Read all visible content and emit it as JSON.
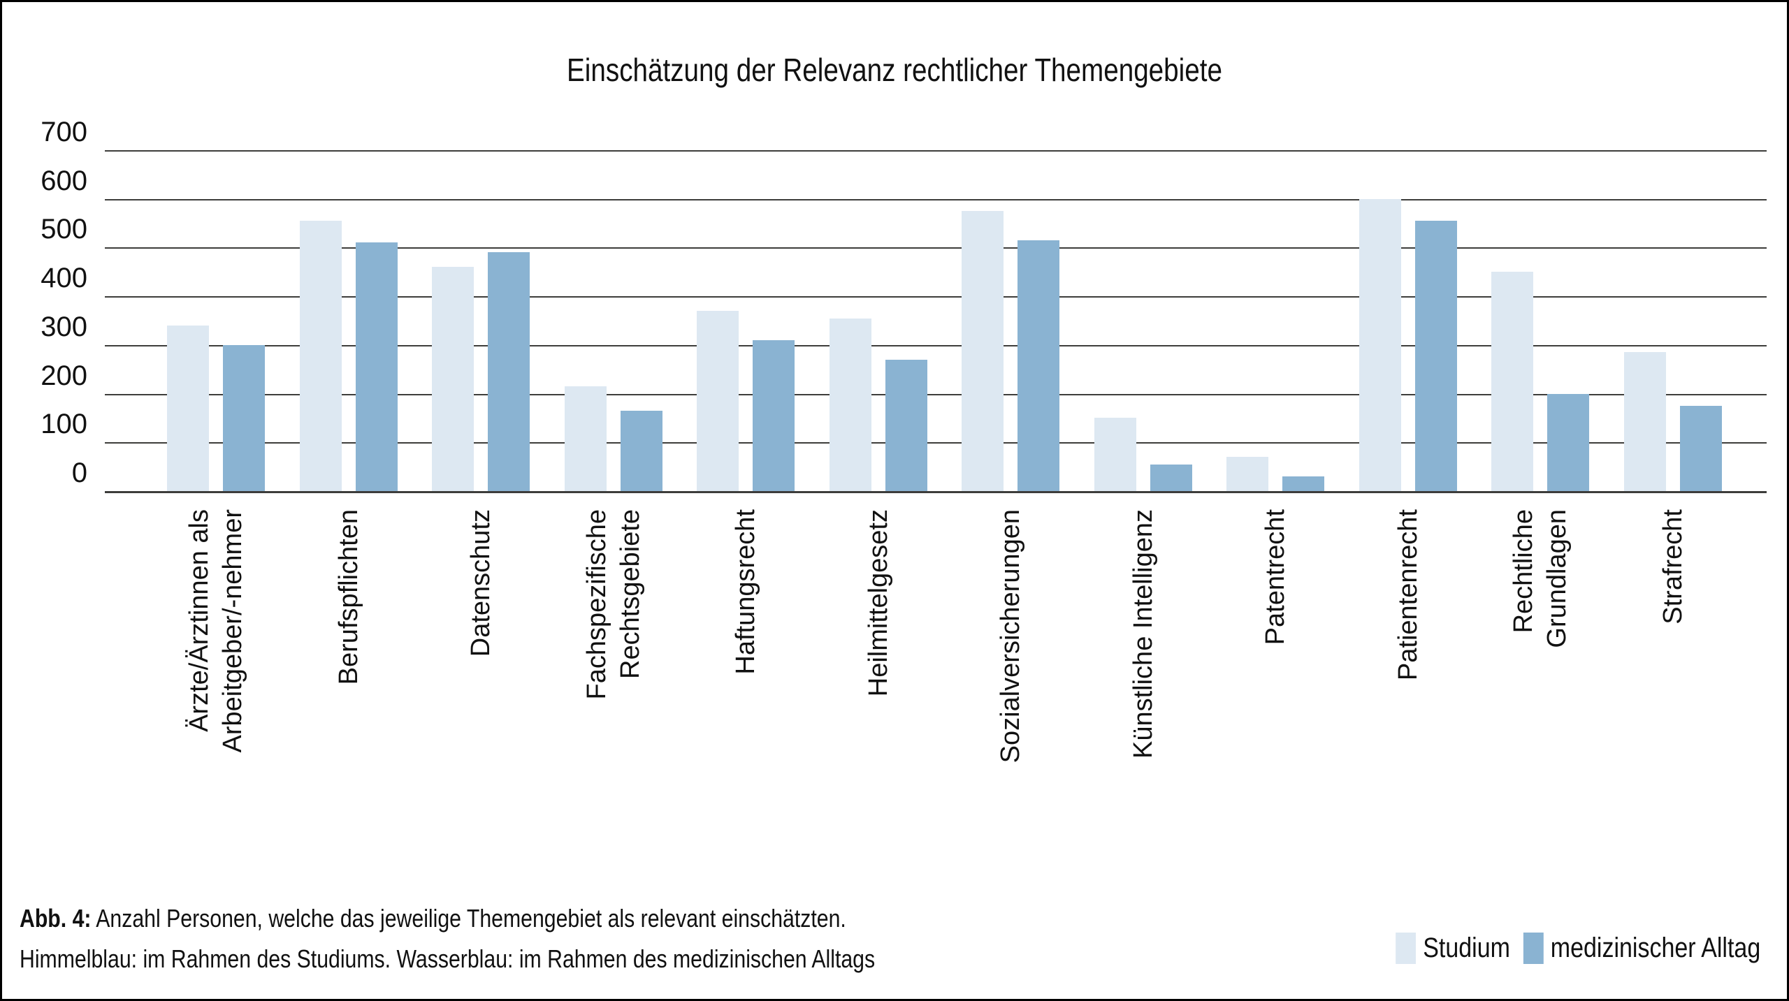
{
  "figure": {
    "title": "Einschätzung der Relevanz rechtlicher Themengebiete",
    "caption": {
      "label": "Abb. 4:",
      "line1_rest": "Anzahl Personen, welche das jeweilige Themengebiet als relevant einschätzten.",
      "line2": "Himmelblau: im Rahmen des Studiums. Wasserblau: im Rahmen des medizinischen Alltags"
    }
  },
  "colors": {
    "studium_light_blue": "#dde8f2",
    "alltag_water_blue": "#8ab3d2",
    "gridline": "#3d3d3b",
    "text": "#111111",
    "frame": "#000000",
    "background": "#ffffff"
  },
  "legend": {
    "items": [
      {
        "label": "Studium",
        "color": "#dde8f2"
      },
      {
        "label": "medizinischer Alltag",
        "color": "#8ab3d2"
      }
    ]
  },
  "chart_data": {
    "type": "bar",
    "title": "Einschätzung der Relevanz rechtlicher Themengebiete",
    "xlabel": "",
    "ylabel": "",
    "ylim": [
      0,
      700
    ],
    "y_ticks": [
      0,
      100,
      200,
      300,
      400,
      500,
      600,
      700
    ],
    "grid": "horizontal",
    "legend_position": "bottom-right",
    "categories": [
      "Ärzte/Ärztinnen als\nArbeitgeber/-nehmer",
      "Berufspflichten",
      "Datenschutz",
      "Fachspezifische\nRechtsgebiete",
      "Haftungsrecht",
      "Heilmittelgesetz",
      "Sozialversicherungen",
      "Künstliche Intelligenz",
      "Patentrecht",
      "Patientenrecht",
      "Rechtliche\nGrundlagen",
      "Strafrecht"
    ],
    "series": [
      {
        "name": "Studium",
        "color": "#dde8f2",
        "values": [
          340,
          555,
          460,
          215,
          370,
          355,
          575,
          150,
          70,
          600,
          450,
          285
        ]
      },
      {
        "name": "medizinischer Alltag",
        "color": "#8ab3d2",
        "values": [
          300,
          510,
          490,
          165,
          310,
          270,
          515,
          55,
          30,
          555,
          200,
          175
        ]
      }
    ]
  }
}
